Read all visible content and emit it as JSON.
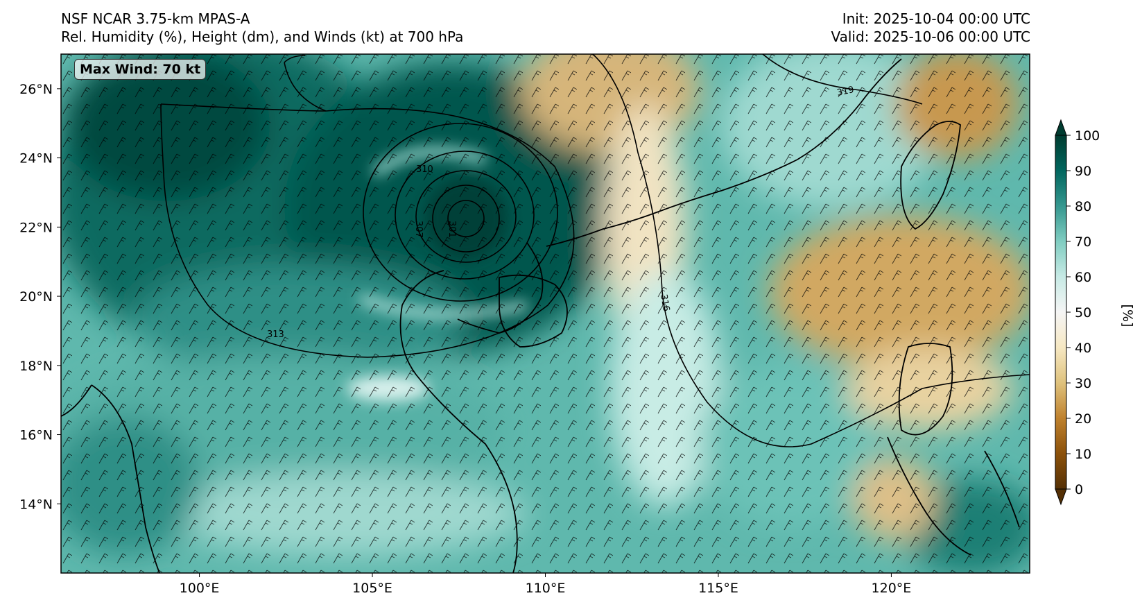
{
  "header": {
    "model": "NSF NCAR 3.75-km MPAS-A",
    "fields": "Rel. Humidity (%), Height (dm), and Winds (kt) at 700 hPa",
    "init": "Init: 2025-10-04 00:00 UTC",
    "valid": "Valid: 2025-10-06 00:00 UTC"
  },
  "annotation": {
    "max_wind": "Max Wind: 70 kt"
  },
  "map": {
    "lon_range": [
      96,
      124
    ],
    "lat_range": [
      12,
      27
    ],
    "lon_ticks": [
      "100°E",
      "105°E",
      "110°E",
      "115°E",
      "120°E"
    ],
    "lat_ticks": [
      "26°N",
      "24°N",
      "22°N",
      "20°N",
      "18°N",
      "16°N",
      "14°N"
    ],
    "contour_labels": [
      "313",
      "316",
      "319",
      "310",
      "301",
      "307"
    ],
    "storm_center": {
      "lon": 107.6,
      "lat": 22.3
    }
  },
  "colorbar": {
    "label": "[%]",
    "ticks": [
      "0",
      "10",
      "20",
      "30",
      "40",
      "50",
      "60",
      "70",
      "80",
      "90",
      "100"
    ],
    "colors": [
      "#543005",
      "#8c510a",
      "#bf812d",
      "#dfc27d",
      "#f6e8c3",
      "#f5f5f5",
      "#c7eae5",
      "#80cdc1",
      "#35978f",
      "#01665e",
      "#003c30"
    ]
  }
}
